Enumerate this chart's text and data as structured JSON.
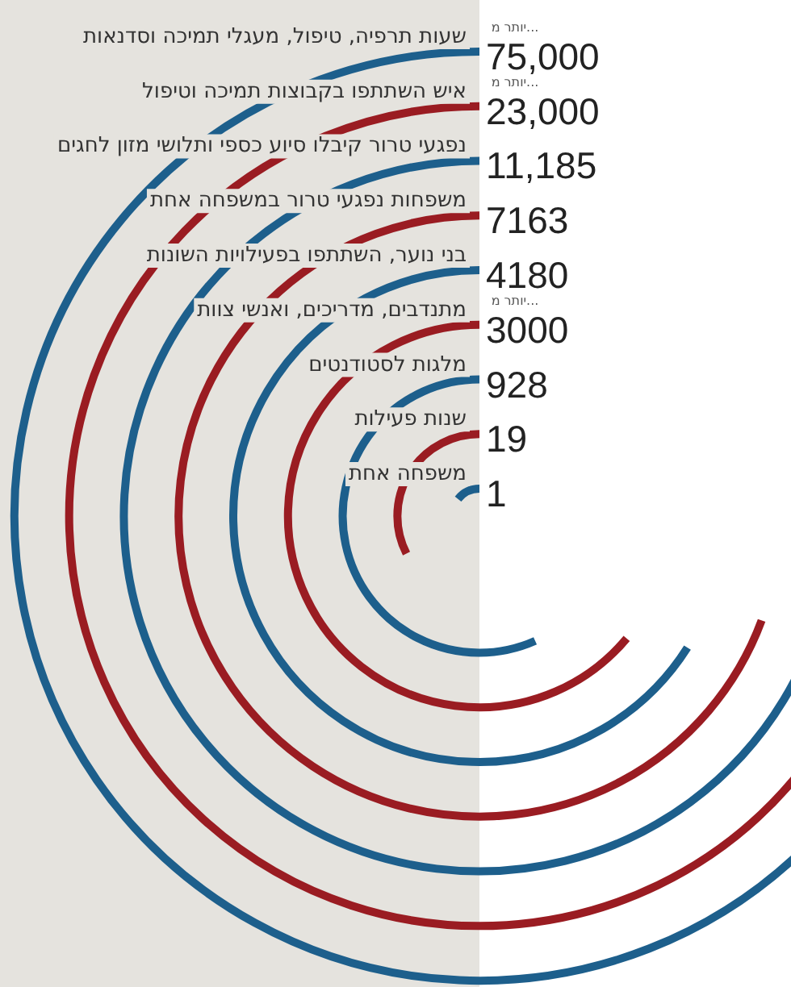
{
  "chart_data": {
    "type": "other",
    "categories": [
      "שעות תרפיה, טיפול, מעגלי תמיכה וסדנאות",
      "איש השתתפו בקבוצות תמיכה וטיפול",
      "נפגעי טרור קיבלו סיוע כספי ותלושי מזון לחגים",
      "משפחות נפגעי טרור במשפחה אחת",
      "בני נוער, השתתפו בפעילויות השונות",
      "מתנדבים, מדריכים, ואנשי צוות",
      "מלגות לסטודנטים",
      "שנות פעילות",
      "משפחה אחת"
    ],
    "values": [
      75000,
      23000,
      11185,
      7163,
      4180,
      3000,
      928,
      19,
      1
    ],
    "value_labels": [
      "75,000",
      "23,000",
      "11,185",
      "7163",
      "4180",
      "3000",
      "928",
      "19",
      "1"
    ],
    "colors": [
      "#1d5f8c",
      "#9a1c22",
      "#1d5f8c",
      "#9a1c22",
      "#1d5f8c",
      "#9a1c22",
      "#1d5f8c",
      "#9a1c22",
      "#1d5f8c"
    ],
    "annotations": [
      {
        "text": "יותר מ...",
        "y": "שעות תרפיה, טיפול, מעגלי תמיכה וסדנאות"
      },
      {
        "text": "יותר מ...",
        "y": "איש השתתפו בקבוצות תמיכה וטיפול"
      },
      {
        "text": "יותר מ...",
        "y": "מתנדבים, מדריכים, ואנשי צוות"
      }
    ]
  }
}
